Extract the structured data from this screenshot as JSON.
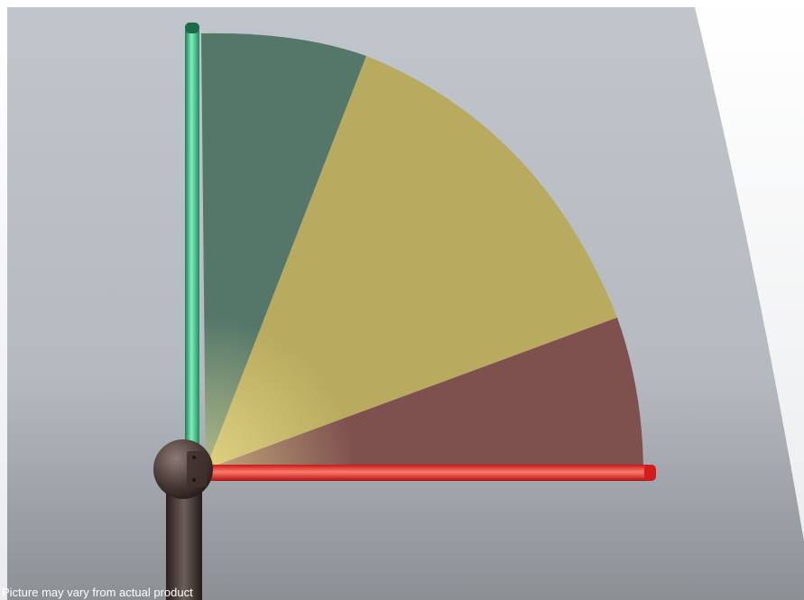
{
  "disclaimer": "Picture may vary from actual product",
  "colors": {
    "background_top": "#bcc1c7",
    "background_bottom": "#8e9398",
    "green_bar": "#3fbf8a",
    "green_sector": "#4f7563",
    "yellow_sector": "#b7a95c",
    "red_sector": "#7c4e4c",
    "red_bar": "#ff3b3b",
    "post": "#3a2c2a"
  },
  "icons": {
    "green_light_bar": "vertical-green-light-bar",
    "red_light_bar": "horizontal-red-light-bar",
    "pivot": "ball-joint",
    "post": "mounting-post"
  }
}
